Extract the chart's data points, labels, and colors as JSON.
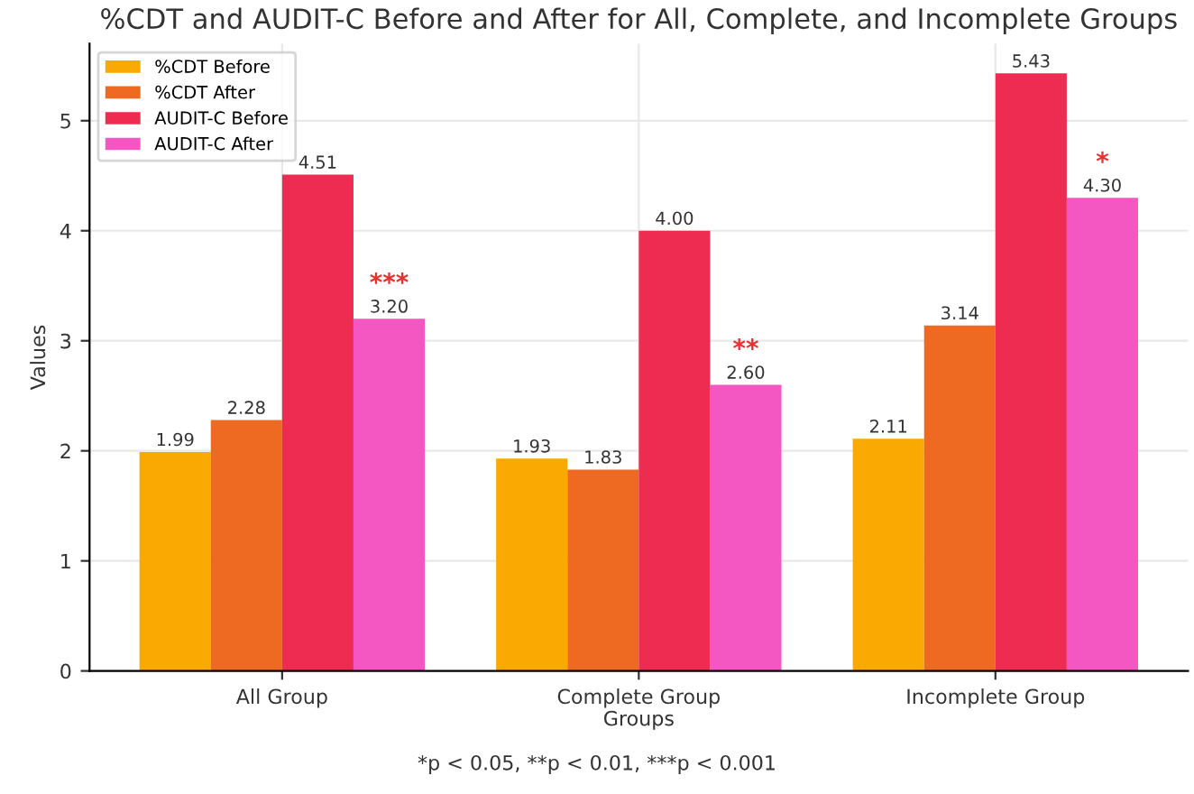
{
  "chart_data": {
    "type": "bar",
    "title": "%CDT and AUDIT-C Before and After for All, Complete, and Incomplete Groups",
    "xlabel": "Groups",
    "ylabel": "Values",
    "categories": [
      "All Group",
      "Complete Group",
      "Incomplete Group"
    ],
    "series": [
      {
        "name": "%CDT Before",
        "color": "#f9a902",
        "values": [
          1.99,
          1.93,
          2.11
        ],
        "value_labels": [
          "1.99",
          "1.93",
          "2.11"
        ]
      },
      {
        "name": "%CDT After",
        "color": "#ee6a22",
        "values": [
          2.28,
          1.83,
          3.14
        ],
        "value_labels": [
          "2.28",
          "1.83",
          "3.14"
        ]
      },
      {
        "name": "AUDIT-C Before",
        "color": "#ee2c52",
        "values": [
          4.51,
          4.0,
          5.43
        ],
        "value_labels": [
          "4.51",
          "4.00",
          "5.43"
        ]
      },
      {
        "name": "AUDIT-C After",
        "color": "#f557c2",
        "values": [
          3.2,
          2.6,
          4.3
        ],
        "value_labels": [
          "3.20",
          "2.60",
          "4.30"
        ]
      }
    ],
    "ylim": [
      0,
      5.7
    ],
    "yticks": [
      0,
      1,
      2,
      3,
      4,
      5
    ],
    "grid": true,
    "legend": "top left",
    "annotations": [
      "***",
      "**",
      "*",
      "*p < 0.05, **p < 0.01, ***p < 0.001"
    ]
  }
}
